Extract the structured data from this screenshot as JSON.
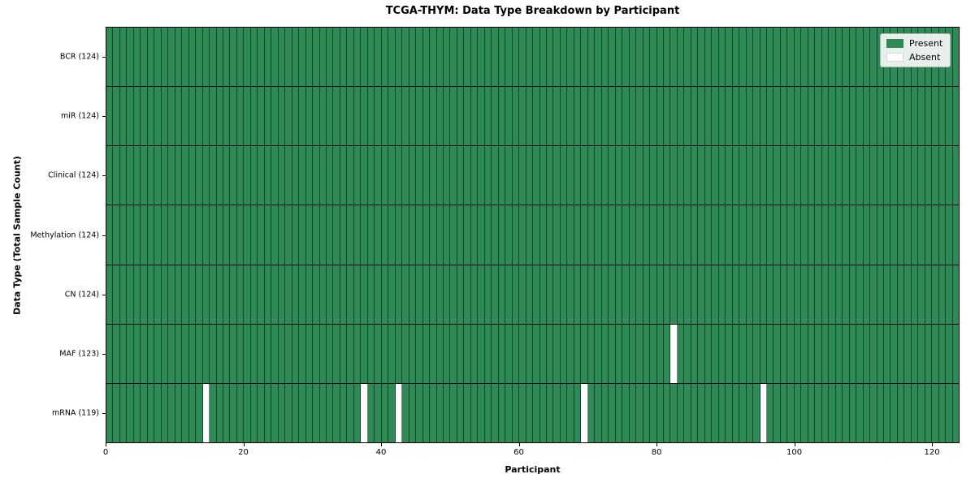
{
  "chart_data": {
    "type": "heatmap",
    "title": "TCGA-THYM: Data Type Breakdown by Participant",
    "xlabel": "Participant",
    "ylabel": "Data Type (Total Sample Count)",
    "x_ticks": [
      0,
      20,
      40,
      60,
      80,
      100,
      120
    ],
    "x_range": [
      0,
      124
    ],
    "n_participants": 124,
    "rows": [
      {
        "label": "BCR (124)",
        "data_type": "BCR",
        "total": 124,
        "absent_participants": []
      },
      {
        "label": "miR (124)",
        "data_type": "miR",
        "total": 124,
        "absent_participants": []
      },
      {
        "label": "Clinical (124)",
        "data_type": "Clinical",
        "total": 124,
        "absent_participants": []
      },
      {
        "label": "Methylation (124)",
        "data_type": "Methylation",
        "total": 124,
        "absent_participants": []
      },
      {
        "label": "CN (124)",
        "data_type": "CN",
        "total": 124,
        "absent_participants": []
      },
      {
        "label": "MAF (123)",
        "data_type": "MAF",
        "total": 123,
        "absent_participants": [
          82
        ]
      },
      {
        "label": "mRNA (119)",
        "data_type": "mRNA",
        "total": 119,
        "absent_participants": [
          14,
          37,
          42,
          69,
          95
        ]
      }
    ],
    "legend": [
      {
        "label": "Present",
        "color": "#2e8b57"
      },
      {
        "label": "Absent",
        "color": "#ffffff"
      }
    ],
    "legend_position": "upper right",
    "grid": false,
    "colors": {
      "present": "#2e8b57",
      "absent": "#ffffff",
      "cell_edge": "#17452b",
      "row_divider": "#0c0c0c",
      "axis": "#000000",
      "legend_background": "#f8f8f8",
      "legend_border": "#b5b5b5"
    }
  }
}
